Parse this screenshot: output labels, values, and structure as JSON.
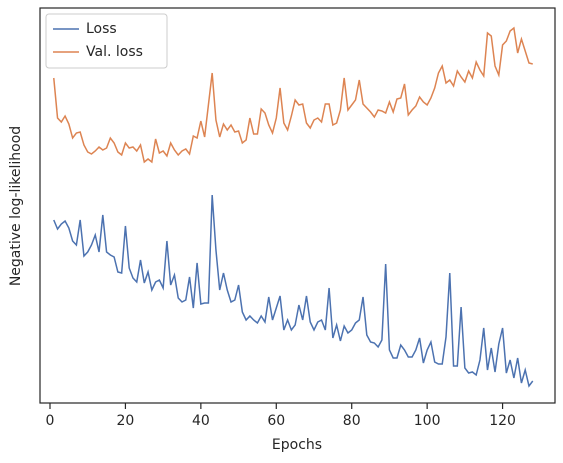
{
  "chart_data": {
    "type": "line",
    "xlabel": "Epochs",
    "ylabel": "Negative log-likelihood",
    "x": [
      1,
      2,
      3,
      4,
      5,
      6,
      7,
      8,
      9,
      10,
      11,
      12,
      13,
      14,
      15,
      16,
      17,
      18,
      19,
      20,
      21,
      22,
      23,
      24,
      25,
      26,
      27,
      28,
      29,
      30,
      31,
      32,
      33,
      34,
      35,
      36,
      37,
      38,
      39,
      40,
      41,
      42,
      43,
      44,
      45,
      46,
      47,
      48,
      49,
      50,
      51,
      52,
      53,
      54,
      55,
      56,
      57,
      58,
      59,
      60,
      61,
      62,
      63,
      64,
      65,
      66,
      67,
      68,
      69,
      70,
      71,
      72,
      73,
      74,
      75,
      76,
      77,
      78,
      79,
      80,
      81,
      82,
      83,
      84,
      85,
      86,
      87,
      88,
      89,
      90,
      91,
      92,
      93,
      94,
      95,
      96,
      97,
      98,
      99,
      100,
      101,
      102,
      103,
      104,
      105,
      106,
      107,
      108,
      109,
      110,
      111,
      112,
      113,
      114,
      115,
      116,
      117,
      118,
      119,
      120,
      121,
      122,
      123,
      124,
      125,
      126,
      127,
      128
    ],
    "series": [
      {
        "name": "Loss",
        "color": "#4c72b0",
        "values": [
          183,
          174,
          179,
          182,
          175,
          162,
          158,
          183,
          147,
          151,
          158,
          168,
          151,
          188,
          151,
          148,
          146,
          131,
          130,
          177,
          135,
          125,
          121,
          143,
          120,
          131,
          113,
          121,
          123,
          115,
          162,
          118,
          128,
          105,
          101,
          103,
          126,
          95,
          140,
          99,
          100,
          100,
          208,
          153,
          113,
          130,
          113,
          101,
          103,
          118,
          91,
          83,
          87,
          83,
          80,
          87,
          81,
          106,
          83,
          95,
          107,
          73,
          83,
          73,
          78,
          98,
          83,
          107,
          81,
          73,
          81,
          83,
          73,
          115,
          65,
          78,
          62,
          77,
          70,
          73,
          80,
          83,
          106,
          68,
          61,
          60,
          56,
          63,
          139,
          53,
          45,
          45,
          58,
          53,
          46,
          46,
          53,
          65,
          40,
          53,
          61,
          41,
          39,
          39,
          66,
          130,
          37,
          37,
          96,
          35,
          30,
          31,
          28,
          43,
          75,
          33,
          55,
          31,
          59,
          75,
          30,
          43,
          25,
          45,
          20,
          33,
          17,
          22
        ]
      },
      {
        "name": "Val. loss",
        "color": "#dd8452",
        "values": [
          325,
          285,
          281,
          287,
          279,
          265,
          270,
          271,
          258,
          251,
          249,
          252,
          256,
          253,
          255,
          265,
          260,
          251,
          248,
          260,
          255,
          256,
          252,
          258,
          241,
          244,
          241,
          264,
          250,
          252,
          247,
          260,
          253,
          248,
          252,
          254,
          249,
          267,
          265,
          282,
          266,
          298,
          330,
          283,
          266,
          279,
          273,
          278,
          271,
          272,
          260,
          263,
          285,
          269,
          269,
          294,
          290,
          278,
          270,
          285,
          315,
          280,
          273,
          287,
          303,
          298,
          299,
          280,
          275,
          283,
          285,
          281,
          299,
          299,
          278,
          280,
          293,
          325,
          293,
          298,
          303,
          323,
          299,
          295,
          291,
          286,
          293,
          292,
          290,
          301,
          291,
          304,
          305,
          319,
          288,
          293,
          297,
          306,
          301,
          298,
          305,
          315,
          330,
          337,
          320,
          323,
          317,
          332,
          326,
          321,
          332,
          325,
          341,
          333,
          327,
          370,
          367,
          337,
          328,
          358,
          362,
          372,
          375,
          350,
          364,
          352,
          340,
          339
        ]
      }
    ],
    "xlim": [
      -2.65,
      133.9
    ],
    "xticks": [
      0,
      20,
      40,
      60,
      80,
      100,
      120
    ],
    "ylim": [
      0,
      395
    ],
    "legend": "upper left"
  }
}
